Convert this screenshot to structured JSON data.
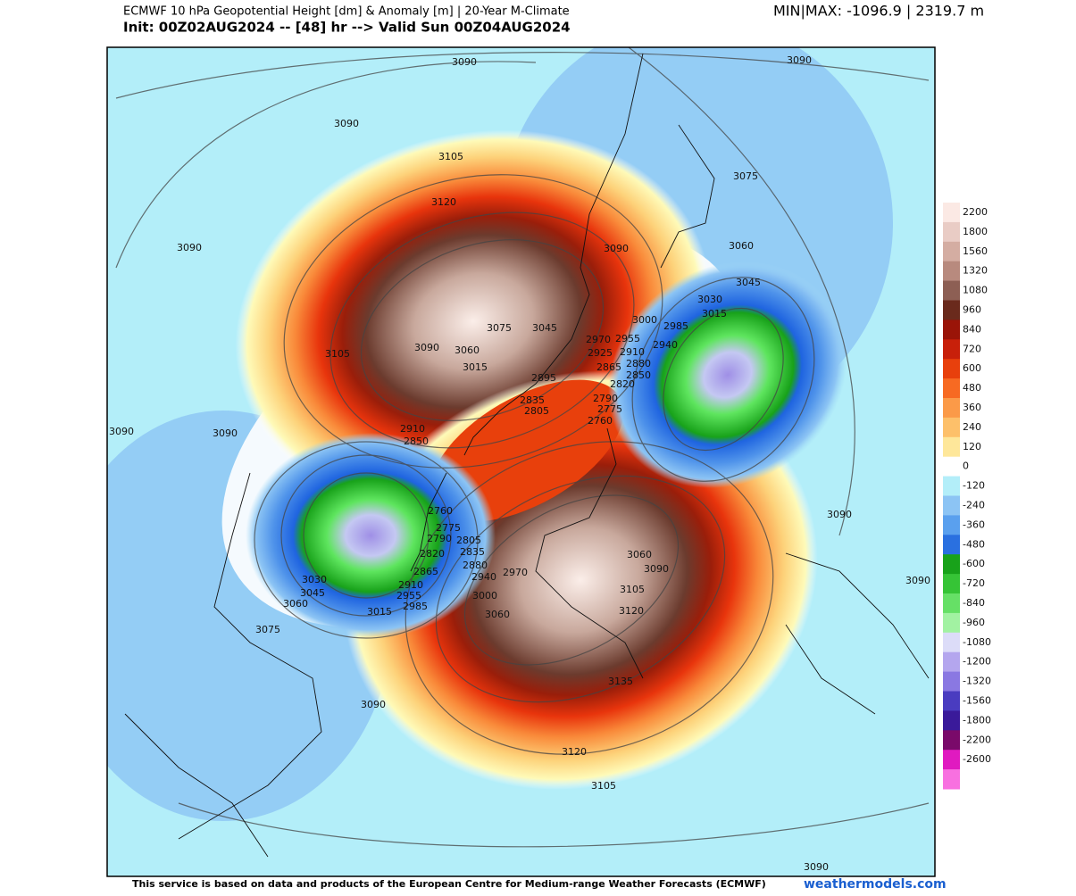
{
  "header": {
    "title": "ECMWF 10 hPa Geopotential Height [dm] & Anomaly [m] | 20-Year M-Climate",
    "subtitle": "Init: 00Z02AUG2024 -- [48] hr --> Valid Sun 00Z04AUG2024",
    "minmax": "MIN|MAX: -1096.9 | 2319.7 m"
  },
  "colorbar": {
    "ticks": [
      2200,
      1800,
      1560,
      1320,
      1080,
      960,
      840,
      720,
      600,
      480,
      360,
      240,
      120,
      0,
      -120,
      -240,
      -360,
      -480,
      -600,
      -720,
      -840,
      -960,
      -1080,
      -1200,
      -1320,
      -1560,
      -1800,
      -2200,
      -2600
    ]
  },
  "contour_labels": [
    3090,
    3090,
    3090,
    3105,
    3075,
    3120,
    3090,
    3060,
    3090,
    3045,
    3030,
    3015,
    3000,
    2985,
    3075,
    3045,
    2970,
    2955,
    2940,
    3090,
    3060,
    3105,
    2925,
    2910,
    2880,
    3015,
    2865,
    2850,
    2895,
    2820,
    2835,
    2790,
    2805,
    2775,
    2760,
    3090,
    3090,
    2910,
    2850,
    2760,
    2775,
    2790,
    2805,
    2835,
    2820,
    2880,
    2865,
    2940,
    2970,
    3060,
    3090,
    3030,
    2910,
    3045,
    2955,
    3000,
    3105,
    3060,
    2985,
    3015,
    3060,
    3120,
    3075,
    3090,
    3090,
    3135,
    3090,
    3120,
    3105,
    3090
  ],
  "footer": {
    "credit": "This service is based on data and products of the European Centre for Medium-range Weather Forecasts (ECMWF)",
    "site": "weathermodels.com"
  }
}
